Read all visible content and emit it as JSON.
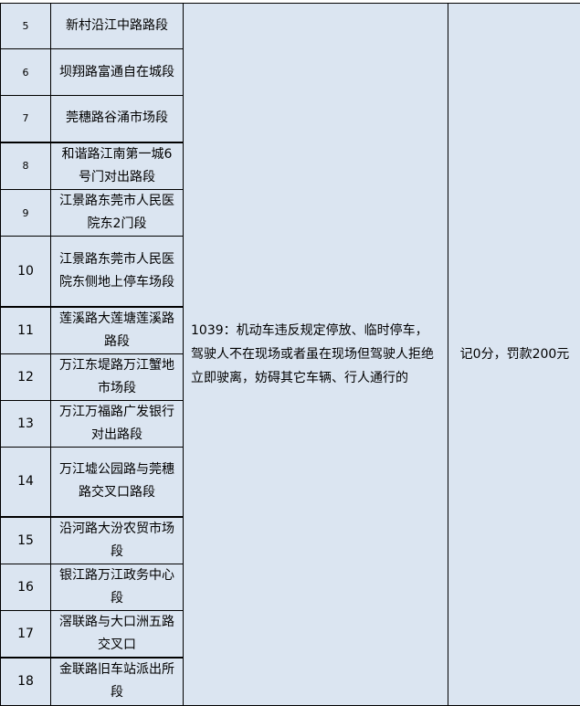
{
  "rows": [
    {
      "no": "5",
      "location": "新村沿江中路路段"
    },
    {
      "no": "6",
      "location": "坝翔路富通自在城段"
    },
    {
      "no": "7",
      "location": "莞穗路谷涌市场段"
    },
    {
      "no": "8",
      "location": "和谐路江南第一城6号门对出路段"
    },
    {
      "no": "9",
      "location": "江景路东莞市人民医院东2门段"
    },
    {
      "no": "10",
      "location": "江景路东莞市人民医院东侧地上停车场段"
    },
    {
      "no": "11",
      "location": "莲溪路大莲塘莲溪路路段"
    },
    {
      "no": "12",
      "location": "万江东堤路万江蟹地市场段"
    },
    {
      "no": "13",
      "location": "万江万福路广发银行对出路段"
    },
    {
      "no": "14",
      "location": "万江墟公园路与莞穗路交叉口路段"
    },
    {
      "no": "15",
      "location": "沿河路大汾农贸市场段"
    },
    {
      "no": "16",
      "location": "银江路万江政务中心段"
    },
    {
      "no": "17",
      "location": "滘联路与大口洲五路交叉口"
    },
    {
      "no": "18",
      "location": "金联路旧车站派出所段"
    }
  ],
  "violation": "1039：机动车违反规定停放、临时停车，驾驶人不在现场或者虽在现场但驾驶人拒绝立即驶离，妨碍其它车辆、行人通行的",
  "penalty": "记0分，罚款200元"
}
